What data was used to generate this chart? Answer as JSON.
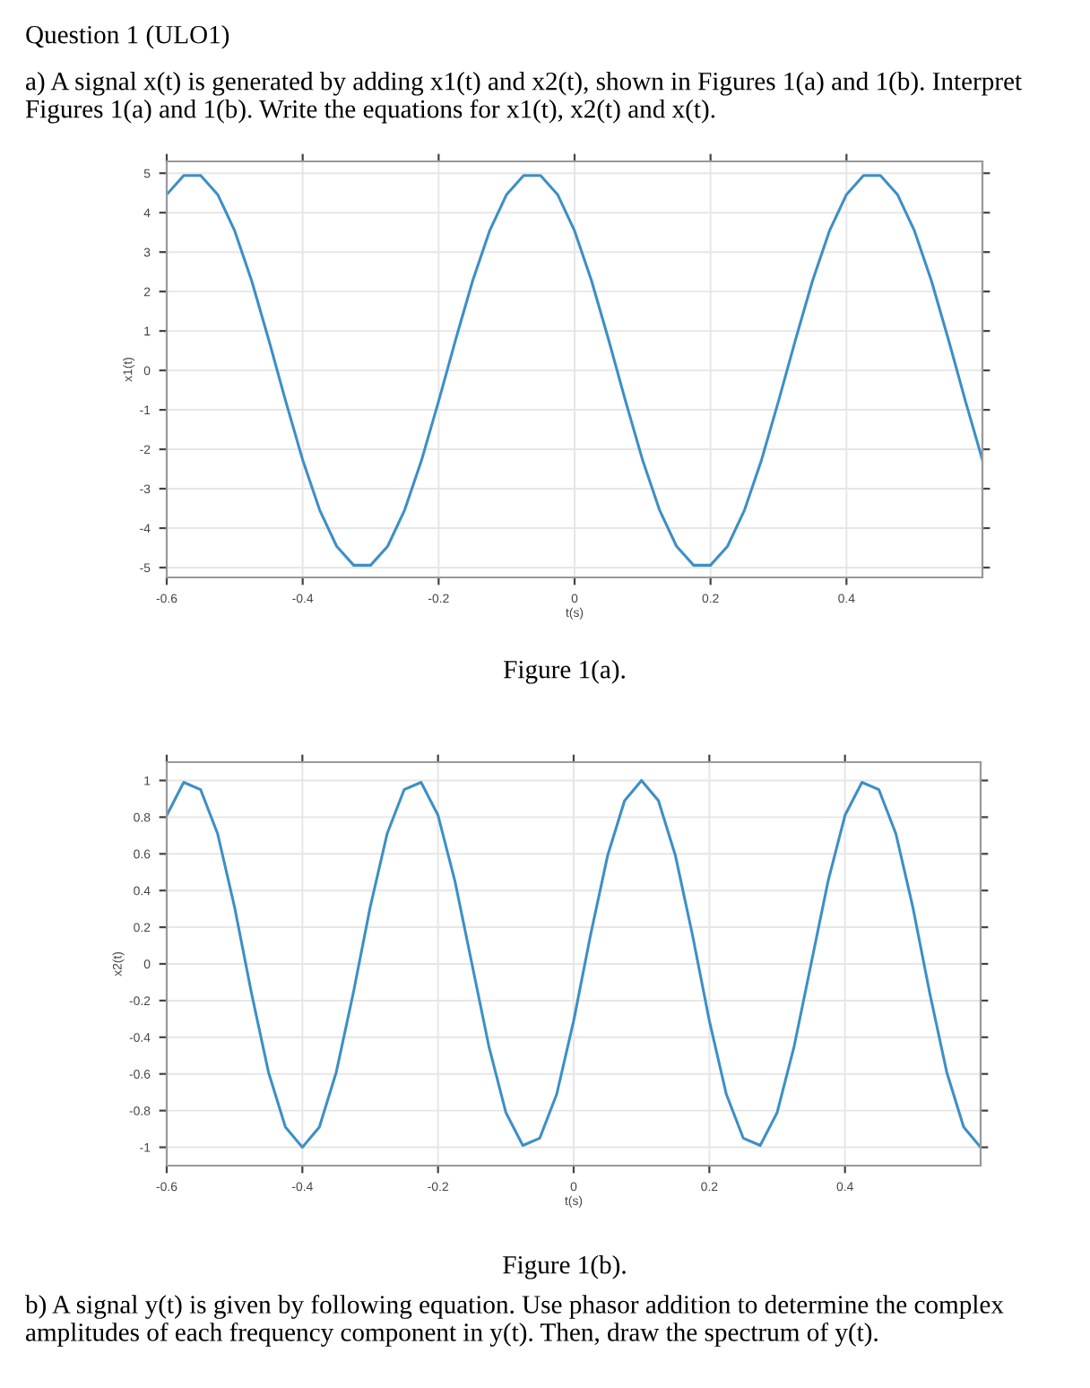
{
  "chart_data": [
    {
      "type": "line",
      "xlabel": "t(s)",
      "ylabel": "x1(t)",
      "annotations": [
        "Question 1 (ULO1)",
        "a) A signal x(t) is generated by adding x1(t) and x2(t), shown in Figures 1(a) and 1(b). Interpret Figures 1(a) and 1(b). Write the equations for x1(t), x2(t) and x(t).",
        "Figure 1(a)."
      ],
      "x": [
        -0.6,
        -0.575,
        -0.55,
        -0.525,
        -0.5,
        -0.475,
        -0.45,
        -0.425,
        -0.4,
        -0.375,
        -0.35,
        -0.325,
        -0.3,
        -0.275,
        -0.25,
        -0.225,
        -0.2,
        -0.175,
        -0.15,
        -0.125,
        -0.1,
        -0.075,
        -0.05,
        -0.025,
        0,
        0.025,
        0.05,
        0.075,
        0.1,
        0.125,
        0.15,
        0.175,
        0.2,
        0.225,
        0.25,
        0.275,
        0.3,
        0.325,
        0.35,
        0.375,
        0.4,
        0.425,
        0.45,
        0.475,
        0.5,
        0.525,
        0.55,
        0.575,
        0.6
      ],
      "series": [
        {
          "color": "#3d8fc6",
          "values": [
            4.46,
            4.94,
            4.94,
            4.46,
            3.54,
            2.27,
            0.78,
            -0.78,
            -2.27,
            -3.54,
            -4.46,
            -4.94,
            -4.94,
            -4.46,
            -3.54,
            -2.27,
            -0.78,
            0.78,
            2.27,
            3.54,
            4.46,
            4.94,
            4.94,
            4.46,
            3.54,
            2.27,
            0.78,
            -0.78,
            -2.27,
            -3.54,
            -4.46,
            -4.94,
            -4.94,
            -4.46,
            -3.54,
            -2.27,
            -0.78,
            0.78,
            2.27,
            3.54,
            4.46,
            4.94,
            4.94,
            4.46,
            3.54,
            2.27,
            0.78,
            -0.78,
            -2.27
          ]
        }
      ],
      "xlim": [
        -0.6,
        0.6
      ],
      "xticks": [
        -0.6,
        -0.4,
        -0.2,
        0,
        0.2,
        0.4
      ],
      "ylim": [
        -5.25,
        5.3
      ],
      "yticks": [
        -5,
        -4,
        -3,
        -2,
        -1,
        0,
        1,
        2,
        3,
        4,
        5
      ],
      "grid": true
    },
    {
      "type": "line",
      "xlabel": "t(s)",
      "ylabel": "x2(t)",
      "annotations": [
        "Figure 1(b).",
        "b) A signal y(t) is given by following equation. Use phasor addition to determine the complex amplitudes of each frequency component in y(t). Then, draw the spectrum of y(t)."
      ],
      "x": [
        -0.6,
        -0.575,
        -0.55,
        -0.525,
        -0.5,
        -0.475,
        -0.45,
        -0.425,
        -0.4,
        -0.375,
        -0.35,
        -0.325,
        -0.3,
        -0.275,
        -0.25,
        -0.225,
        -0.2,
        -0.175,
        -0.15,
        -0.125,
        -0.1,
        -0.075,
        -0.05,
        -0.025,
        0,
        0.025,
        0.05,
        0.075,
        0.1,
        0.125,
        0.15,
        0.175,
        0.2,
        0.225,
        0.25,
        0.275,
        0.3,
        0.325,
        0.35,
        0.375,
        0.4,
        0.425,
        0.45,
        0.475,
        0.5,
        0.525,
        0.55,
        0.575,
        0.6
      ],
      "series": [
        {
          "color": "#3d8fc6",
          "values": [
            0.81,
            0.99,
            0.95,
            0.71,
            0.31,
            -0.16,
            -0.59,
            -0.89,
            -1,
            -0.89,
            -0.59,
            -0.16,
            0.31,
            0.71,
            0.95,
            0.99,
            0.81,
            0.45,
            0,
            -0.45,
            -0.81,
            -0.99,
            -0.95,
            -0.71,
            -0.31,
            0.16,
            0.59,
            0.89,
            1,
            0.89,
            0.59,
            0.16,
            -0.31,
            -0.71,
            -0.95,
            -0.99,
            -0.81,
            -0.45,
            0,
            0.45,
            0.81,
            0.99,
            0.95,
            0.71,
            0.31,
            -0.16,
            -0.59,
            -0.89,
            -1
          ]
        }
      ],
      "xlim": [
        -0.6,
        0.6
      ],
      "xticks": [
        -0.6,
        -0.4,
        -0.2,
        0,
        0.2,
        0.4
      ],
      "ylim": [
        -1.1,
        1.1
      ],
      "yticks": [
        -1,
        -0.8,
        -0.6,
        -0.4,
        -0.2,
        0,
        0.2,
        0.4,
        0.6,
        0.8,
        1
      ],
      "grid": true
    }
  ]
}
